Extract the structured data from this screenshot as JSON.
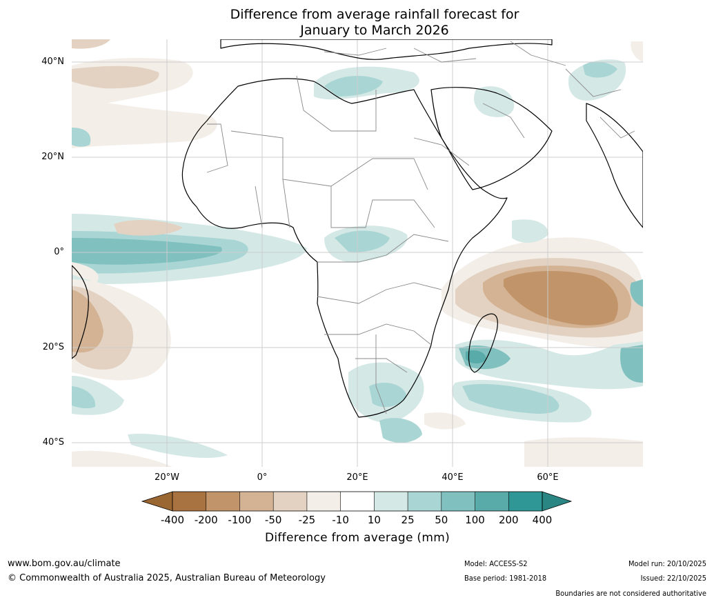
{
  "title": {
    "line1": "Difference from average rainfall forecast for",
    "line2": "January to March 2026"
  },
  "map": {
    "region": "Africa",
    "lat_labels": [
      "40°N",
      "20°N",
      "0°",
      "20°S",
      "40°S"
    ],
    "lat_values": [
      40,
      20,
      0,
      -20,
      -40
    ],
    "lon_labels": [
      "20°W",
      "0°",
      "20°E",
      "40°E",
      "60°E"
    ],
    "lon_values": [
      -20,
      0,
      20,
      40,
      60
    ],
    "extent": {
      "lon_min": -40,
      "lon_max": 80,
      "lat_min": -45,
      "lat_max": 45
    }
  },
  "legend": {
    "ticks": [
      "-400",
      "-200",
      "-100",
      "-50",
      "-25",
      "-10",
      "10",
      "25",
      "50",
      "100",
      "200",
      "400"
    ],
    "colors": [
      "#a87340",
      "#c29469",
      "#d4b394",
      "#e3d2c1",
      "#f3eee8",
      "#ffffff",
      "#d4e8e6",
      "#a9d6d4",
      "#80c1c0",
      "#59abaa",
      "#2f9896"
    ],
    "extend_low_color": "#9a6631",
    "extend_high_color": "#2a8683",
    "label": "Difference from average (mm)"
  },
  "footer": {
    "website": "www.bom.gov.au/climate",
    "copyright": "© Commonwealth of Australia 2025, Australian Bureau of Meteorology",
    "model": "Model: ACCESS-S2",
    "base_period": "Base period: 1981-2018",
    "model_run": "Model run: 20/10/2025",
    "issued": "Issued: 22/10/2025",
    "disclaimer": "Boundaries are not considered authoritative"
  }
}
